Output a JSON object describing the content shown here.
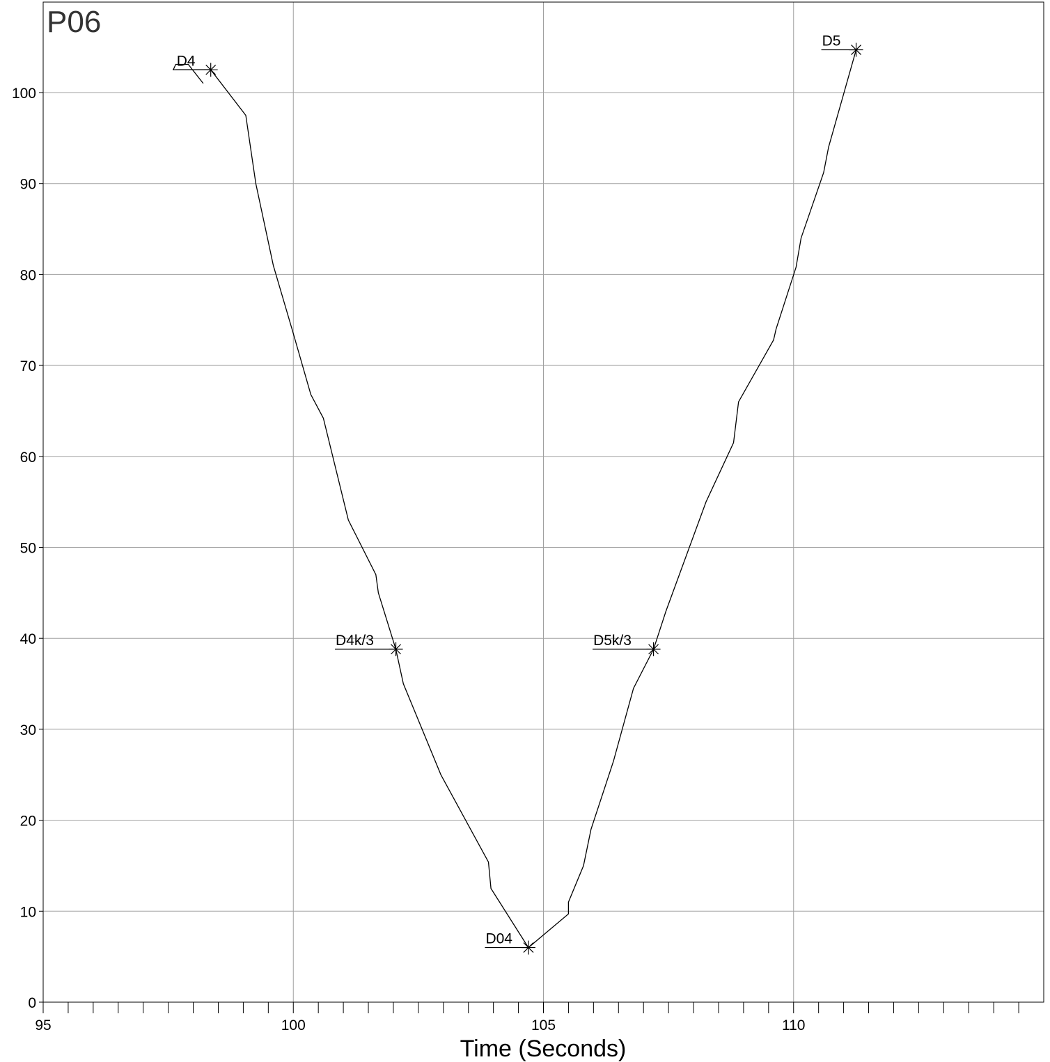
{
  "chart_data": {
    "type": "line",
    "title": "P06",
    "xlabel": "Time (Seconds)",
    "ylabel": "",
    "xlim": [
      95,
      115
    ],
    "ylim": [
      0,
      100
    ],
    "x_ticks": [
      95,
      100,
      105,
      110
    ],
    "y_ticks": [
      0,
      10,
      20,
      30,
      40,
      50,
      60,
      70,
      80,
      90,
      100
    ],
    "minor_x_step": 0.5,
    "grid": true,
    "colors": {
      "line": "#000000",
      "grid": "#a0a0a0",
      "axis": "#000000"
    },
    "series": [
      {
        "points": [
          [
            98.2,
            101.0
          ],
          [
            97.9,
            103.1
          ],
          [
            97.65,
            103.1
          ],
          [
            97.6,
            102.5
          ],
          [
            98.35,
            102.5
          ],
          [
            99.05,
            97.5
          ],
          [
            99.25,
            90.0
          ],
          [
            99.6,
            81.0
          ],
          [
            100.0,
            73.5
          ],
          [
            100.35,
            66.8
          ],
          [
            100.6,
            64.2
          ],
          [
            101.1,
            53.0
          ],
          [
            101.65,
            47.0
          ],
          [
            101.7,
            45.0
          ],
          [
            102.05,
            38.8
          ],
          [
            102.2,
            35.0
          ],
          [
            102.95,
            25.0
          ],
          [
            103.9,
            15.4
          ],
          [
            103.95,
            12.5
          ],
          [
            104.7,
            6.0
          ],
          [
            105.5,
            9.7
          ],
          [
            105.5,
            11.0
          ],
          [
            105.8,
            15.0
          ],
          [
            105.95,
            19.0
          ],
          [
            106.4,
            26.5
          ],
          [
            106.8,
            34.5
          ],
          [
            107.2,
            38.8
          ],
          [
            107.45,
            43.0
          ],
          [
            108.25,
            55.0
          ],
          [
            108.8,
            61.5
          ],
          [
            108.9,
            66.0
          ],
          [
            109.6,
            72.8
          ],
          [
            109.65,
            74.0
          ],
          [
            110.05,
            80.8
          ],
          [
            110.15,
            84.0
          ],
          [
            110.6,
            91.2
          ],
          [
            110.7,
            94.0
          ],
          [
            111.25,
            104.7
          ]
        ]
      }
    ],
    "annotations": [
      {
        "label": "D4",
        "x": 98.35,
        "y": 102.5
      },
      {
        "label": "D4k/3",
        "x": 102.05,
        "y": 38.8
      },
      {
        "label": "D04",
        "x": 104.7,
        "y": 6.0
      },
      {
        "label": "D5k/3",
        "x": 107.2,
        "y": 38.8
      },
      {
        "label": "D5",
        "x": 111.25,
        "y": 104.7
      }
    ]
  }
}
